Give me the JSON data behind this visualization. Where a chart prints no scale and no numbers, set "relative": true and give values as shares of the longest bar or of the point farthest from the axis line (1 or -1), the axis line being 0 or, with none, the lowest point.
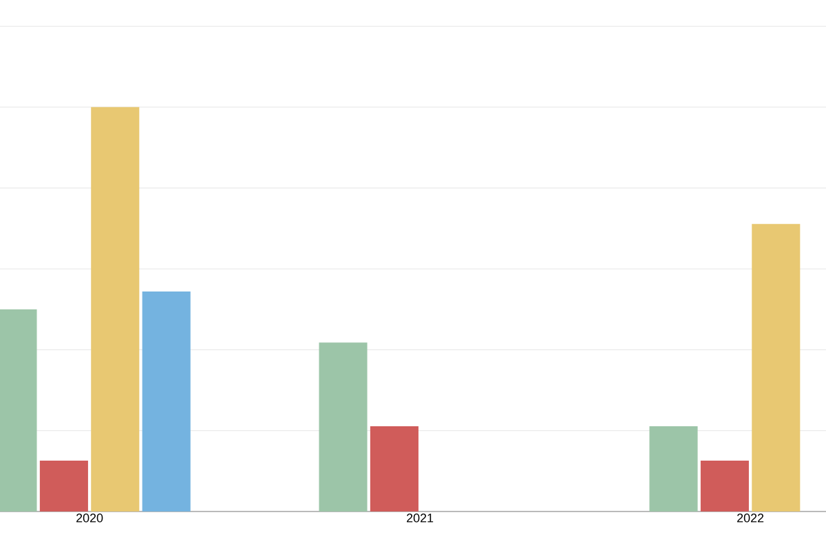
{
  "chart_data": {
    "type": "bar",
    "relative": true,
    "grid": "y",
    "categories": [
      "2020",
      "2021",
      "2022"
    ],
    "series": [
      {
        "color": "#9cc5a8",
        "values": [
          0.5,
          0.418,
          0.211
        ]
      },
      {
        "color": "#d05c5a",
        "values": [
          0.126,
          0.211,
          0.126
        ]
      },
      {
        "color": "#e8c872",
        "values": [
          1,
          null,
          0.711
        ]
      },
      {
        "color": "#74b3e0",
        "values": [
          0.544,
          null,
          null
        ]
      }
    ]
  }
}
